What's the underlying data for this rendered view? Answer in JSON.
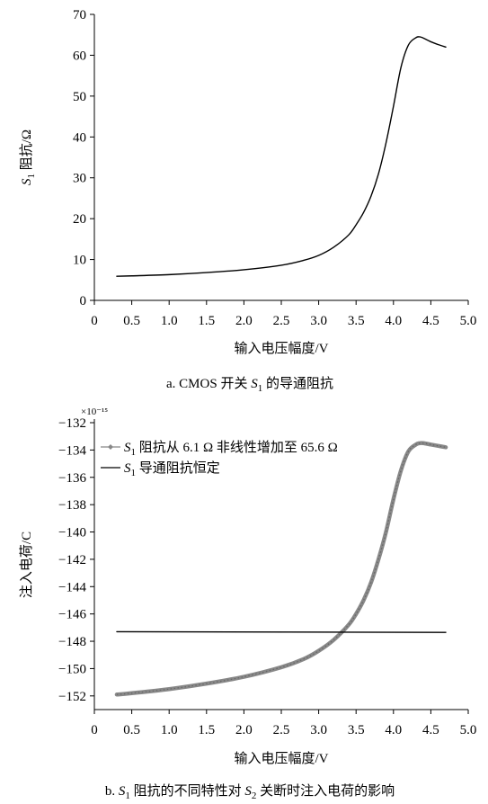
{
  "chart_data": [
    {
      "type": "line",
      "title": "",
      "caption": {
        "prefix": "a. CMOS 开关 ",
        "var": "S",
        "sub": "1",
        "suffix": " 的导通阻抗"
      },
      "xlabel": "输入电压幅度/V",
      "ylabel": {
        "var": "S",
        "sub": "1",
        "text": " 阻抗/Ω"
      },
      "xlim": [
        0,
        5.0
      ],
      "ylim": [
        0,
        70
      ],
      "xticks": [
        "0",
        "0.5",
        "1.0",
        "1.5",
        "2.0",
        "2.5",
        "3.0",
        "3.5",
        "4.0",
        "4.5",
        "5.0"
      ],
      "yticks": [
        "0",
        "10",
        "20",
        "30",
        "40",
        "50",
        "60",
        "70"
      ],
      "grid": false,
      "series": [
        {
          "color": "#000000",
          "x": [
            0.3,
            0.5,
            1.0,
            1.5,
            2.0,
            2.5,
            2.8,
            3.0,
            3.2,
            3.4,
            3.5,
            3.6,
            3.7,
            3.8,
            3.9,
            4.0,
            4.1,
            4.2,
            4.3,
            4.35,
            4.4,
            4.5,
            4.6,
            4.7
          ],
          "y": [
            5.9,
            6.0,
            6.3,
            6.8,
            7.5,
            8.6,
            9.8,
            11.0,
            13.0,
            16.0,
            18.5,
            21.5,
            25.5,
            31.0,
            38.5,
            47.5,
            57.0,
            62.5,
            64.3,
            64.5,
            64.2,
            63.3,
            62.6,
            62.0
          ]
        }
      ]
    },
    {
      "type": "line",
      "title": "",
      "caption": {
        "prefix": "b. ",
        "var1": "S",
        "sub1": "1",
        "mid": " 阻抗的不同特性对 ",
        "var2": "S",
        "sub2": "2",
        "suffix": " 关断时注入电荷的影响"
      },
      "xlabel": "输入电压幅度/V",
      "ylabel": "注入电荷/C",
      "y_multiplier": "×10⁻¹⁵",
      "xlim": [
        0,
        5.0
      ],
      "ylim": [
        -153,
        -132
      ],
      "xticks": [
        "0",
        "0.5",
        "1.0",
        "1.5",
        "2.0",
        "2.5",
        "3.0",
        "3.5",
        "4.0",
        "4.5",
        "5.0"
      ],
      "yticks": [
        "−132",
        "−134",
        "−136",
        "−138",
        "−140",
        "−142",
        "−144",
        "−146",
        "−148",
        "−150",
        "−152"
      ],
      "grid": false,
      "legend_position": "top-left",
      "series": [
        {
          "legend": {
            "var": "S",
            "sub": "1",
            "text": " 阻抗从 6.1 Ω 非线性增加至 65.6 Ω"
          },
          "color": "#888888",
          "marker": "diamond",
          "x": [
            0.3,
            0.5,
            1.0,
            1.5,
            2.0,
            2.5,
            2.8,
            3.0,
            3.2,
            3.4,
            3.5,
            3.6,
            3.7,
            3.8,
            3.9,
            4.0,
            4.1,
            4.2,
            4.3,
            4.35,
            4.4,
            4.5,
            4.6,
            4.7
          ],
          "y": [
            -151.9,
            -151.8,
            -151.5,
            -151.1,
            -150.6,
            -149.9,
            -149.3,
            -148.7,
            -147.9,
            -146.8,
            -146.0,
            -145.0,
            -143.7,
            -142.0,
            -140.0,
            -137.6,
            -135.5,
            -134.1,
            -133.6,
            -133.5,
            -133.5,
            -133.6,
            -133.7,
            -133.8
          ]
        },
        {
          "legend": {
            "var": "S",
            "sub": "1",
            "text": " 导通阻抗恒定"
          },
          "color": "#000000",
          "marker": "none",
          "x": [
            0.3,
            4.7
          ],
          "y": [
            -147.3,
            -147.35
          ]
        }
      ]
    }
  ]
}
